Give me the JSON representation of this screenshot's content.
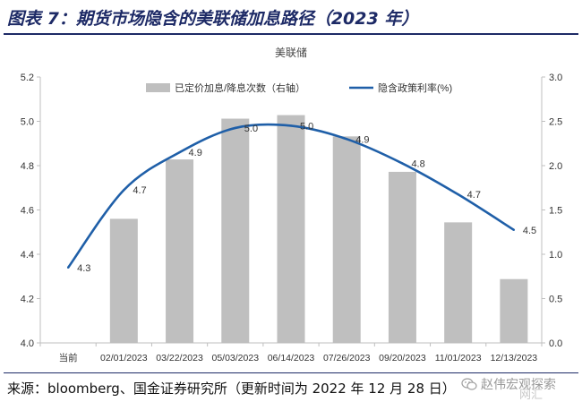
{
  "header": {
    "title": "图表 7：期货市场隐含的美联储加息路径（2023 年）"
  },
  "chart_data": {
    "type": "bar+line",
    "title": "美联储",
    "categories": [
      "当前",
      "02/01/2023",
      "03/22/2023",
      "05/03/2023",
      "06/14/2023",
      "07/26/2023",
      "09/20/2023",
      "11/01/2023",
      "12/13/2023"
    ],
    "series": [
      {
        "name": "已定价加息/降息次数（右轴）",
        "type": "bar",
        "axis": "right",
        "color": "#bfbfbf",
        "values": [
          null,
          1.4,
          2.07,
          2.53,
          2.57,
          2.33,
          1.93,
          1.36,
          0.72
        ]
      },
      {
        "name": "隐含政策利率(%)",
        "type": "line",
        "axis": "left",
        "color": "#1f5fa8",
        "values": [
          4.34,
          4.69,
          4.86,
          4.97,
          4.98,
          4.92,
          4.81,
          4.67,
          4.51
        ],
        "labels": [
          "4.3",
          "4.7",
          "4.9",
          "5.0",
          "5.0",
          "4.9",
          "4.8",
          "4.7",
          "4.5"
        ]
      }
    ],
    "left_axis": {
      "min": 4.0,
      "max": 5.2,
      "ticks": [
        "4.0",
        "4.2",
        "4.4",
        "4.6",
        "4.8",
        "5.0",
        "5.2"
      ]
    },
    "right_axis": {
      "min": 0.0,
      "max": 3.0,
      "ticks": [
        "0.0",
        "0.5",
        "1.0",
        "1.5",
        "2.0",
        "2.5",
        "3.0"
      ]
    },
    "grid": false,
    "legend_position": "top"
  },
  "footer": {
    "source": "来源：bloomberg、国金证券研究所（更新时间为 2022 年 12 月 28 日）",
    "watermark": "赵伟宏观探索",
    "watermark_side": "网汇"
  }
}
